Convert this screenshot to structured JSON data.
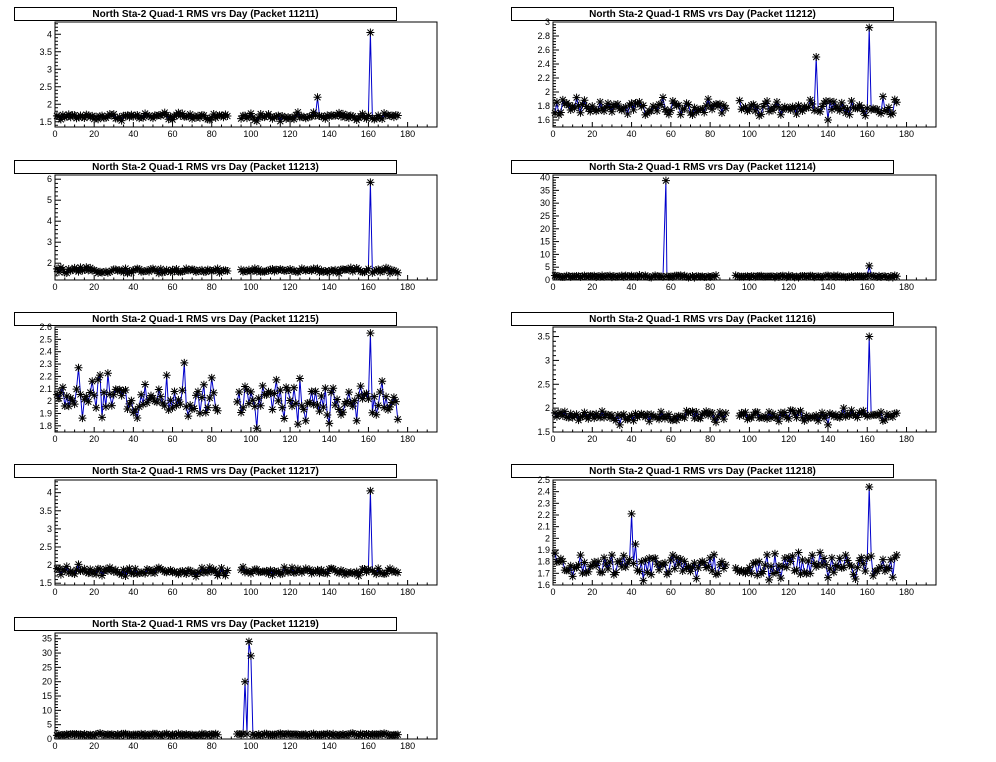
{
  "chart_data": [
    {
      "type": "line",
      "title": "North Sta-2 Quad-1 RMS vrs Day (Packet 11211)",
      "xlabel": "",
      "ylabel": "",
      "xlim": [
        0,
        195
      ],
      "ylim": [
        1.35,
        4.35
      ],
      "xticks": [
        0,
        20,
        40,
        60,
        80,
        100,
        120,
        140,
        160,
        180
      ],
      "yticks": [
        1.5,
        2,
        2.5,
        3,
        3.5,
        4
      ],
      "ytick_labels": [
        "1.5",
        "2",
        "2.5",
        "3",
        "3.5",
        "4"
      ],
      "baseline": 1.65,
      "noise": 0.05,
      "gaps": [
        [
          89,
          94
        ]
      ],
      "spikes": [
        {
          "x": 134,
          "y": 2.2
        },
        {
          "x": 161,
          "y": 4.05
        }
      ],
      "series": [
        {
          "values": []
        }
      ]
    },
    {
      "type": "line",
      "title": "North Sta-2 Quad-1 RMS vrs Day (Packet 11212)",
      "xlabel": "",
      "ylabel": "",
      "xlim": [
        0,
        195
      ],
      "ylim": [
        1.5,
        3.0
      ],
      "xticks": [
        0,
        20,
        40,
        60,
        80,
        100,
        120,
        140,
        160,
        180
      ],
      "yticks": [
        1.6,
        1.8,
        2,
        2.2,
        2.4,
        2.6,
        2.8,
        3
      ],
      "ytick_labels": [
        "1.6",
        "1.8",
        "2",
        "2.2",
        "2.4",
        "2.6",
        "2.8",
        "3"
      ],
      "baseline": 1.77,
      "noise": 0.06,
      "gaps": [
        [
          89,
          94
        ]
      ],
      "spikes": [
        {
          "x": 12,
          "y": 1.92
        },
        {
          "x": 134,
          "y": 2.5
        },
        {
          "x": 161,
          "y": 2.92
        },
        {
          "x": 140,
          "y": 1.6
        }
      ],
      "series": [
        {
          "values": []
        }
      ]
    },
    {
      "type": "line",
      "title": "North Sta-2 Quad-1 RMS vrs Day (Packet 11213)",
      "xlabel": "",
      "ylabel": "",
      "xlim": [
        0,
        195
      ],
      "ylim": [
        1.2,
        6.2
      ],
      "xticks": [
        0,
        20,
        40,
        60,
        80,
        100,
        120,
        140,
        160,
        180
      ],
      "yticks": [
        2,
        3,
        4,
        5,
        6
      ],
      "ytick_labels": [
        "2",
        "3",
        "4",
        "5",
        "6"
      ],
      "baseline": 1.65,
      "noise": 0.06,
      "gaps": [
        [
          89,
          94
        ]
      ],
      "spikes": [
        {
          "x": 161,
          "y": 5.85
        }
      ],
      "series": [
        {
          "values": []
        }
      ]
    },
    {
      "type": "line",
      "title": "North Sta-2 Quad-1 RMS vrs Day (Packet 11214)",
      "xlabel": "",
      "ylabel": "",
      "xlim": [
        0,
        195
      ],
      "ylim": [
        0,
        41
      ],
      "xticks": [
        0,
        20,
        40,
        60,
        80,
        100,
        120,
        140,
        160,
        180
      ],
      "yticks": [
        0,
        5,
        10,
        15,
        20,
        25,
        30,
        35,
        40
      ],
      "ytick_labels": [
        "0",
        "5",
        "10",
        "15",
        "20",
        "25",
        "30",
        "35",
        "40"
      ],
      "baseline": 1.4,
      "noise": 0.2,
      "gaps": [
        [
          84,
          92
        ]
      ],
      "spikes": [
        {
          "x": 57,
          "y": 38
        },
        {
          "x": 57.5,
          "y": 38.8
        },
        {
          "x": 161,
          "y": 5.5
        }
      ],
      "series": [
        {
          "values": []
        }
      ]
    },
    {
      "type": "line",
      "title": "North Sta-2 Quad-1 RMS vrs Day (Packet 11215)",
      "xlabel": "",
      "ylabel": "",
      "xlim": [
        0,
        195
      ],
      "ylim": [
        1.75,
        2.6
      ],
      "xticks": [
        0,
        20,
        40,
        60,
        80,
        100,
        120,
        140,
        160,
        180
      ],
      "yticks": [
        1.8,
        1.9,
        2,
        2.1,
        2.2,
        2.3,
        2.4,
        2.5,
        2.6
      ],
      "ytick_labels": [
        "1.8",
        "1.9",
        "2",
        "2.1",
        "2.2",
        "2.3",
        "2.4",
        "2.5",
        "2.6"
      ],
      "baseline": 2.02,
      "noise": 0.09,
      "gaps": [
        [
          84,
          92
        ]
      ],
      "spikes": [
        {
          "x": 12,
          "y": 2.27
        },
        {
          "x": 66,
          "y": 2.31
        },
        {
          "x": 161,
          "y": 2.55
        },
        {
          "x": 140,
          "y": 1.82
        }
      ],
      "series": [
        {
          "values": []
        }
      ]
    },
    {
      "type": "line",
      "title": "North Sta-2 Quad-1 RMS vrs Day (Packet 11216)",
      "xlabel": "",
      "ylabel": "",
      "xlim": [
        0,
        195
      ],
      "ylim": [
        1.5,
        3.7
      ],
      "xticks": [
        0,
        20,
        40,
        60,
        80,
        100,
        120,
        140,
        160,
        180
      ],
      "yticks": [
        1.5,
        2,
        2.5,
        3,
        3.5
      ],
      "ytick_labels": [
        "1.5",
        "2",
        "2.5",
        "3",
        "3.5"
      ],
      "baseline": 1.85,
      "noise": 0.06,
      "gaps": [
        [
          89,
          94
        ]
      ],
      "spikes": [
        {
          "x": 161,
          "y": 3.5
        },
        {
          "x": 34,
          "y": 1.65
        },
        {
          "x": 140,
          "y": 1.65
        },
        {
          "x": 148,
          "y": 2.0
        }
      ],
      "series": [
        {
          "values": []
        }
      ]
    },
    {
      "type": "line",
      "title": "North Sta-2 Quad-1 RMS vrs Day (Packet 11217)",
      "xlabel": "",
      "ylabel": "",
      "xlim": [
        0,
        195
      ],
      "ylim": [
        1.45,
        4.35
      ],
      "xticks": [
        0,
        20,
        40,
        60,
        80,
        100,
        120,
        140,
        160,
        180
      ],
      "yticks": [
        1.5,
        2,
        2.5,
        3,
        3.5,
        4
      ],
      "ytick_labels": [
        "1.5",
        "2",
        "2.5",
        "3",
        "3.5",
        "4"
      ],
      "baseline": 1.82,
      "noise": 0.06,
      "gaps": [
        [
          89,
          94
        ]
      ],
      "spikes": [
        {
          "x": 161,
          "y": 4.05
        },
        {
          "x": 12,
          "y": 2.02
        }
      ],
      "series": [
        {
          "values": []
        }
      ]
    },
    {
      "type": "line",
      "title": "North Sta-2 Quad-1 RMS vrs Day (Packet 11218)",
      "xlabel": "",
      "ylabel": "",
      "xlim": [
        0,
        195
      ],
      "ylim": [
        1.6,
        2.5
      ],
      "xticks": [
        0,
        20,
        40,
        60,
        80,
        100,
        120,
        140,
        160,
        180
      ],
      "yticks": [
        1.6,
        1.7,
        1.8,
        1.9,
        2,
        2.1,
        2.2,
        2.3,
        2.4,
        2.5
      ],
      "ytick_labels": [
        "1.6",
        "1.7",
        "1.8",
        "1.9",
        "2",
        "2.1",
        "2.2",
        "2.3",
        "2.4",
        "2.5"
      ],
      "baseline": 1.76,
      "noise": 0.06,
      "gaps": [
        [
          89,
          92
        ]
      ],
      "spikes": [
        {
          "x": 40,
          "y": 2.21
        },
        {
          "x": 42,
          "y": 1.95
        },
        {
          "x": 161,
          "y": 2.44
        }
      ],
      "series": [
        {
          "values": []
        }
      ]
    },
    {
      "type": "line",
      "title": "North Sta-2 Quad-1 RMS vrs Day (Packet 11219)",
      "xlabel": "",
      "ylabel": "",
      "xlim": [
        0,
        195
      ],
      "ylim": [
        0,
        37
      ],
      "xticks": [
        0,
        20,
        40,
        60,
        80,
        100,
        120,
        140,
        160,
        180
      ],
      "yticks": [
        0,
        5,
        10,
        15,
        20,
        25,
        30,
        35
      ],
      "ytick_labels": [
        "0",
        "5",
        "10",
        "15",
        "20",
        "25",
        "30",
        "35"
      ],
      "baseline": 1.6,
      "noise": 0.2,
      "gaps": [
        [
          84,
          92
        ]
      ],
      "spikes": [
        {
          "x": 97,
          "y": 20
        },
        {
          "x": 99,
          "y": 34
        },
        {
          "x": 100,
          "y": 29
        }
      ],
      "series": [
        {
          "values": []
        }
      ]
    }
  ]
}
